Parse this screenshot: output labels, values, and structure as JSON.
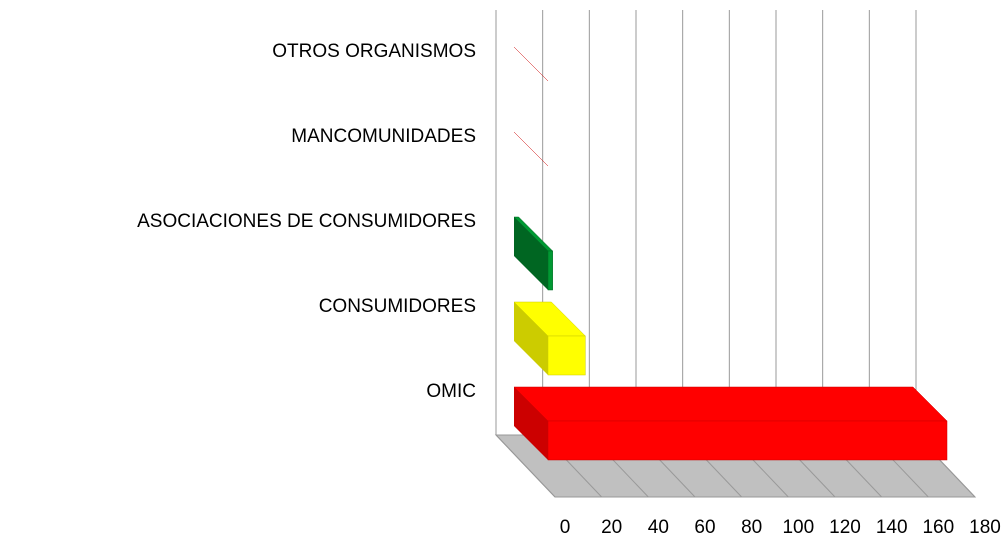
{
  "chart_data": {
    "type": "bar3d_horizontal",
    "categories": [
      "OMIC",
      "CONSUMIDORES",
      "ASOCIACIONES DE CONSUMIDORES",
      "MANCOMUNIDADES",
      "OTROS ORGANISMOS"
    ],
    "values": [
      171,
      16,
      2,
      0,
      0
    ],
    "colors": [
      "#ff0000",
      "#ffff00",
      "#009933",
      "#ff0000",
      "#ff0000"
    ],
    "side_colors": [
      "#cc0000",
      "#cccc00",
      "#006622",
      "#cc0000",
      "#cc0000"
    ],
    "xlim": [
      0,
      180
    ],
    "xticks": [
      0,
      20,
      40,
      60,
      80,
      100,
      120,
      140,
      160,
      180
    ],
    "grid": true
  }
}
